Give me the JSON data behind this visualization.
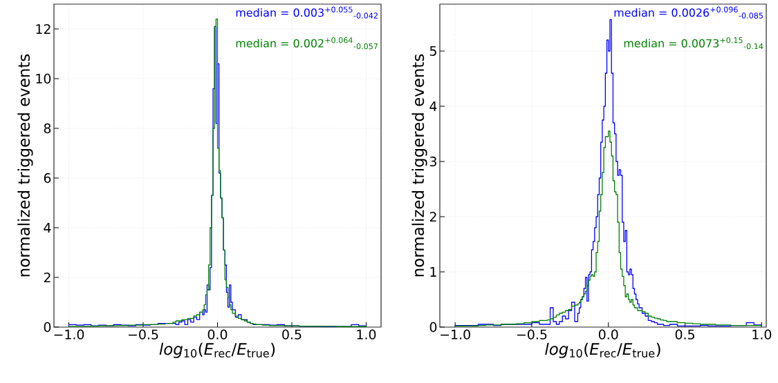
{
  "chart_data": [
    {
      "type": "histogram",
      "xlabel": "*log*$_{10}$(*E*$_{rec}$/*E*$_{true}$)",
      "ylabel": "normalized triggered events",
      "annotations": [
        "median = 0.003$^{+0.055}$$_{-0.042}$",
        "median = 0.002$^{+0.064}$$_{-0.057}$"
      ],
      "bins": [
        -1,
        -0.95,
        -0.9,
        -0.85,
        -0.8,
        -0.75,
        -0.7,
        -0.65,
        -0.6,
        -0.55,
        -0.5,
        -0.45,
        -0.4,
        -0.35,
        -0.3,
        -0.28,
        -0.26,
        -0.24,
        -0.22,
        -0.2,
        -0.18,
        -0.16,
        -0.14,
        -0.12,
        -0.1,
        -0.09,
        -0.08,
        -0.07,
        -0.06,
        -0.05,
        -0.04,
        -0.03,
        -0.02,
        -0.01,
        0,
        0.01,
        0.02,
        0.03,
        0.04,
        0.05,
        0.06,
        0.07,
        0.08,
        0.09,
        0.1,
        0.12,
        0.14,
        0.16,
        0.18,
        0.2,
        0.22,
        0.24,
        0.26,
        0.28,
        0.3,
        0.35,
        0.4,
        0.45,
        0.5,
        0.55,
        0.6,
        0.65,
        0.7,
        0.75,
        0.8,
        0.85,
        0.9,
        0.95,
        1
      ],
      "series": [
        {
          "color": "#0000ff",
          "values": [
            0.1,
            0.08,
            0.1,
            0.05,
            0.08,
            0.05,
            0.1,
            0.08,
            0.05,
            0.1,
            0.08,
            0.1,
            0.15,
            0.15,
            0.15,
            0.1,
            0.2,
            0.25,
            0.1,
            0.3,
            0.2,
            0.4,
            0.3,
            0.6,
            0.5,
            0.7,
            0.6,
            1.7,
            1.5,
            2.4,
            5.3,
            9.6,
            12.1,
            8.2,
            10.6,
            6.2,
            5.2,
            4.4,
            3.1,
            2.5,
            1.4,
            0.8,
            1.7,
            1.0,
            0.7,
            0.4,
            0.5,
            0.3,
            0.3,
            0.2,
            0.15,
            0.1,
            0.1,
            0.1,
            0.1,
            0.08,
            0.1,
            0.05,
            0.05,
            0.03,
            0.03,
            0.03,
            0.02,
            0.02,
            0.02,
            0.02,
            0.1,
            0.05
          ]
        },
        {
          "color": "#008000",
          "values": [
            0.03,
            0.03,
            0.04,
            0.04,
            0.05,
            0.05,
            0.06,
            0.06,
            0.08,
            0.08,
            0.1,
            0.1,
            0.12,
            0.15,
            0.2,
            0.25,
            0.25,
            0.3,
            0.3,
            0.35,
            0.35,
            0.45,
            0.5,
            0.6,
            0.7,
            0.9,
            1.3,
            1.5,
            2.5,
            4.0,
            5.3,
            8.0,
            12.1,
            12.4,
            7.2,
            6.3,
            5.2,
            4.4,
            3.1,
            1.9,
            1.6,
            1.2,
            0.9,
            0.7,
            0.55,
            0.45,
            0.35,
            0.3,
            0.25,
            0.2,
            0.15,
            0.12,
            0.1,
            0.1,
            0.08,
            0.06,
            0.06,
            0.05,
            0.05,
            0.04,
            0.04,
            0.03,
            0.03,
            0.03,
            0.02,
            0.02,
            0.02,
            0.02
          ]
        }
      ],
      "xlim": [
        -1.1,
        1.1
      ],
      "ylim": [
        0,
        13
      ],
      "xticks": [
        {
          "value": -1,
          "label": "−1.0"
        },
        {
          "value": -0.5,
          "label": "−0.5"
        },
        {
          "value": 0,
          "label": "0.0"
        },
        {
          "value": 0.5,
          "label": "0.5"
        },
        {
          "value": 1,
          "label": "1.0"
        }
      ],
      "yticks": [
        0,
        2,
        4,
        6,
        8,
        10,
        12
      ],
      "grid": true
    },
    {
      "type": "histogram",
      "xlabel": "*log*$_{10}$(*E*$_{rec}$/*E*$_{true}$)",
      "ylabel": "normalized triggered events",
      "annotations": [
        "median = 0.0026$^{+0.096}$$_{-0.085}$",
        "median = 0.0073$^{+0.15}$$_{-0.14}$"
      ],
      "bins": [
        -1,
        -0.95,
        -0.9,
        -0.85,
        -0.8,
        -0.75,
        -0.7,
        -0.65,
        -0.6,
        -0.55,
        -0.5,
        -0.45,
        -0.4,
        -0.38,
        -0.36,
        -0.34,
        -0.32,
        -0.3,
        -0.28,
        -0.26,
        -0.24,
        -0.22,
        -0.2,
        -0.19,
        -0.18,
        -0.17,
        -0.16,
        -0.15,
        -0.14,
        -0.13,
        -0.12,
        -0.11,
        -0.1,
        -0.09,
        -0.08,
        -0.07,
        -0.06,
        -0.05,
        -0.04,
        -0.03,
        -0.02,
        -0.01,
        0,
        0.01,
        0.02,
        0.03,
        0.04,
        0.05,
        0.06,
        0.07,
        0.08,
        0.09,
        0.1,
        0.11,
        0.12,
        0.13,
        0.14,
        0.15,
        0.16,
        0.17,
        0.18,
        0.19,
        0.2,
        0.22,
        0.24,
        0.26,
        0.28,
        0.3,
        0.32,
        0.34,
        0.36,
        0.38,
        0.4,
        0.45,
        0.5,
        0.55,
        0.6,
        0.65,
        0.7,
        0.75,
        0.8,
        0.85,
        0.9,
        0.95,
        1
      ],
      "series": [
        {
          "color": "#0000ff",
          "values": [
            0.03,
            0.03,
            0.03,
            0.05,
            0.05,
            0.03,
            0.05,
            0.05,
            0.05,
            0.05,
            0.08,
            0.05,
            0.05,
            0.35,
            0.1,
            0.05,
            0.1,
            0.2,
            0.15,
            0.3,
            0.45,
            0.1,
            0.25,
            0.35,
            0.5,
            0.55,
            0.7,
            0.9,
            0.47,
            0.95,
            1.0,
            1.4,
            1.55,
            1.8,
            2.0,
            2.4,
            2.7,
            3.35,
            3.75,
            4.0,
            4.6,
            5.2,
            5.0,
            5.57,
            4.6,
            3.7,
            3.5,
            3.0,
            2.75,
            2.85,
            2.75,
            1.9,
            1.55,
            1.75,
            1.0,
            0.95,
            1.05,
            0.95,
            0.7,
            0.6,
            0.5,
            0.42,
            0.35,
            0.25,
            0.2,
            0.12,
            0.1,
            0.08,
            0.05,
            0.05,
            0.03,
            0.03,
            0.05,
            0.02,
            0.02,
            0.02,
            0.03,
            0.02,
            0.02,
            0.02,
            0.03,
            0.03,
            0.08,
            0.04
          ]
        },
        {
          "color": "#008000",
          "values": [
            0.02,
            0.02,
            0.02,
            0.03,
            0.04,
            0.04,
            0.05,
            0.05,
            0.06,
            0.08,
            0.1,
            0.12,
            0.13,
            0.15,
            0.18,
            0.22,
            0.25,
            0.27,
            0.3,
            0.32,
            0.38,
            0.4,
            0.42,
            0.45,
            0.5,
            0.55,
            0.6,
            0.65,
            0.75,
            0.85,
            0.92,
            0.95,
            0.92,
            1.0,
            1.35,
            1.55,
            2.1,
            2.4,
            2.8,
            3.25,
            3.45,
            3.45,
            3.55,
            3.35,
            3.1,
            2.65,
            2.45,
            2.4,
            1.9,
            1.35,
            1.05,
            0.92,
            0.75,
            0.55,
            0.6,
            0.5,
            0.45,
            0.5,
            0.4,
            0.35,
            0.35,
            0.3,
            0.3,
            0.28,
            0.25,
            0.2,
            0.18,
            0.16,
            0.15,
            0.13,
            0.12,
            0.1,
            0.1,
            0.08,
            0.07,
            0.06,
            0.05,
            0.05,
            0.04,
            0.04,
            0.03,
            0.03,
            0.03,
            0.03
          ]
        }
      ],
      "xlim": [
        -1.1,
        1.03
      ],
      "ylim": [
        0,
        5.85
      ],
      "xticks": [
        {
          "value": -1,
          "label": "−1.0"
        },
        {
          "value": -0.5,
          "label": "−0.5"
        },
        {
          "value": 0,
          "label": "0.0"
        },
        {
          "value": 0.5,
          "label": "0.5"
        },
        {
          "value": 1,
          "label": "1.0"
        }
      ],
      "yticks": [
        0,
        1,
        2,
        3,
        4,
        5
      ],
      "grid": true
    }
  ]
}
